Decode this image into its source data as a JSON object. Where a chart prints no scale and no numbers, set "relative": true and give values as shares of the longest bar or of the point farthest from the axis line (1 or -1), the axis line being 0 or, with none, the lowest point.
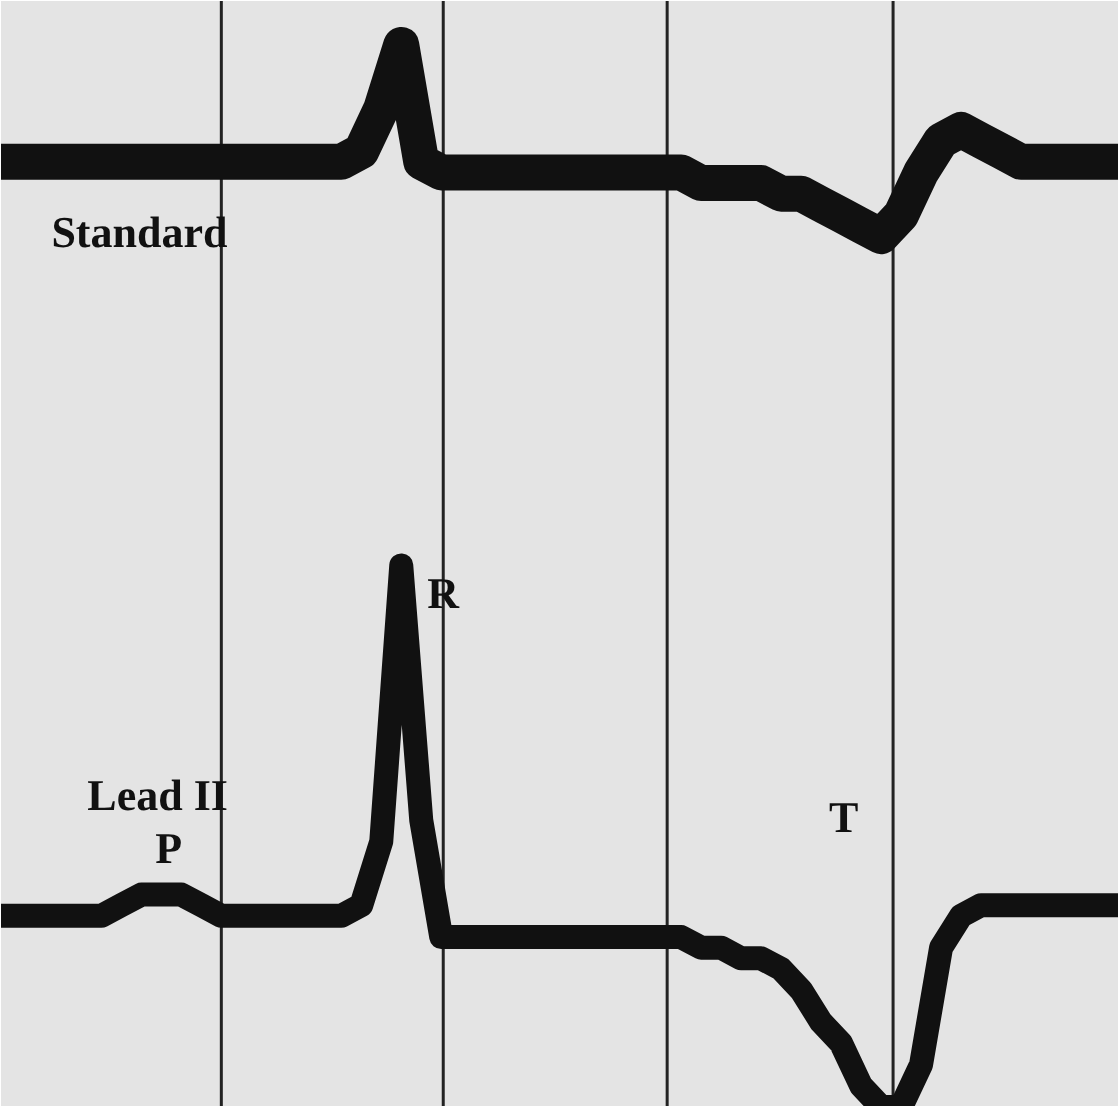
{
  "chart_data": {
    "type": "line",
    "relative": true,
    "categories": [
      null,
      null,
      null,
      null,
      null,
      null,
      null,
      null,
      null,
      null,
      null,
      null,
      null,
      null,
      null,
      null,
      null,
      null,
      null,
      null,
      null,
      null,
      null,
      null,
      null,
      null,
      null,
      null,
      null,
      null,
      null,
      null,
      null,
      null,
      null,
      null,
      null,
      null,
      null,
      null,
      null,
      null,
      null,
      null,
      null,
      null,
      null,
      null,
      null,
      null,
      null,
      null,
      null,
      null,
      null,
      null,
      null
    ],
    "series": [
      {
        "name": "Standard",
        "color": "#111111",
        "values": [
          0.89,
          0.89,
          0.89,
          0.89,
          0.89,
          0.89,
          0.89,
          0.89,
          0.89,
          0.89,
          0.89,
          0.89,
          0.89,
          0.89,
          0.89,
          0.89,
          0.89,
          0.89,
          0.9,
          0.94,
          1.0,
          0.89,
          0.88,
          0.88,
          0.88,
          0.88,
          0.88,
          0.88,
          0.88,
          0.88,
          0.88,
          0.88,
          0.88,
          0.88,
          0.88,
          0.87,
          0.87,
          0.87,
          0.87,
          0.86,
          0.86,
          0.85,
          0.84,
          0.83,
          0.82,
          0.84,
          0.88,
          0.91,
          0.92,
          0.91,
          0.9,
          0.89,
          0.89,
          0.89,
          0.89,
          0.89,
          0.89
        ]
      },
      {
        "name": "Lead II",
        "color": "#111111",
        "values": [
          0.18,
          0.18,
          0.18,
          0.18,
          0.18,
          0.18,
          0.19,
          0.2,
          0.2,
          0.2,
          0.19,
          0.18,
          0.18,
          0.18,
          0.18,
          0.18,
          0.18,
          0.18,
          0.19,
          0.25,
          0.51,
          0.27,
          0.16,
          0.16,
          0.16,
          0.16,
          0.16,
          0.16,
          0.16,
          0.16,
          0.16,
          0.16,
          0.16,
          0.16,
          0.16,
          0.15,
          0.15,
          0.14,
          0.14,
          0.13,
          0.11,
          0.08,
          0.06,
          0.02,
          0.0,
          0.0,
          0.04,
          0.15,
          0.18,
          0.19,
          0.19,
          0.19,
          0.19,
          0.19,
          0.19,
          0.19,
          0.19
        ]
      }
    ],
    "annotations": [
      "P",
      "R",
      "T"
    ],
    "line_style": "solid"
  }
}
